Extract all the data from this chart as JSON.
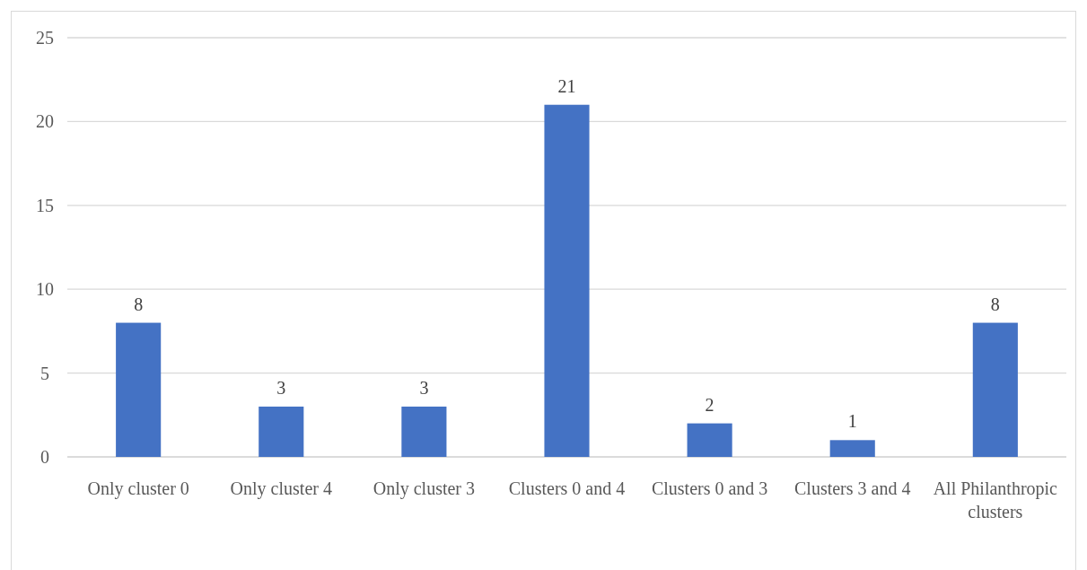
{
  "chart_data": {
    "type": "bar",
    "categories": [
      "Only cluster 0",
      "Only cluster 4",
      "Only cluster 3",
      "Clusters 0 and 4",
      "Clusters 0 and 3",
      "Clusters 3 and 4",
      "All Philanthropic clusters"
    ],
    "values": [
      8,
      3,
      3,
      21,
      2,
      1,
      8
    ],
    "color": "#4472c4",
    "ylim": [
      0,
      25
    ],
    "yticks": [
      0,
      5,
      10,
      15,
      20,
      25
    ],
    "grid": "y",
    "data_labels": true
  }
}
